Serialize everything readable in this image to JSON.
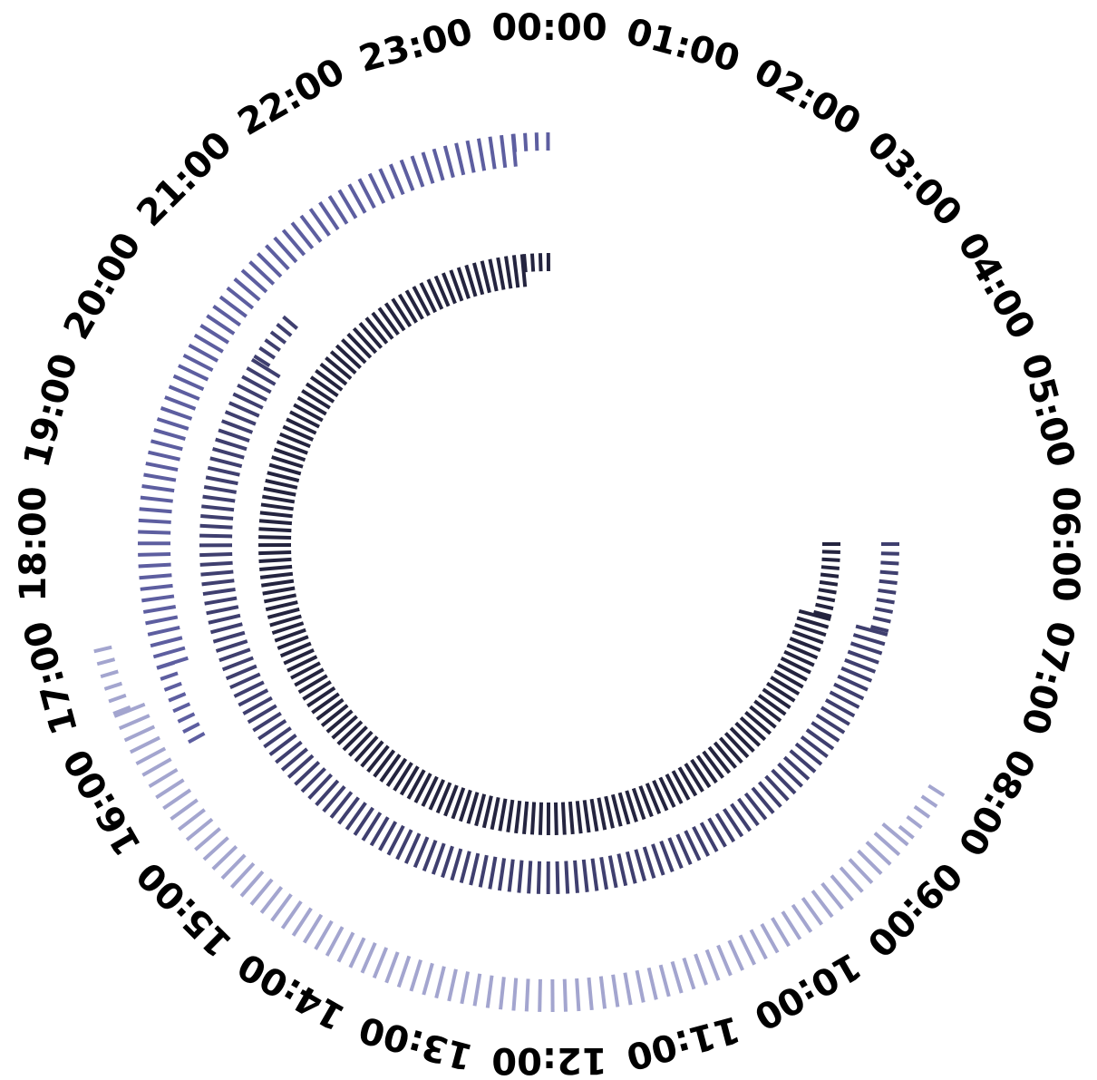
{
  "chart_data": {
    "type": "radial-bar",
    "hour_labels": [
      "00:00",
      "01:00",
      "02:00",
      "03:00",
      "04:00",
      "05:00",
      "06:00",
      "07:00",
      "08:00",
      "09:00",
      "10:00",
      "11:00",
      "12:00",
      "13:00",
      "14:00",
      "15:00",
      "16:00",
      "17:00",
      "18:00",
      "19:00",
      "20:00",
      "21:00",
      "22:00",
      "23:00"
    ],
    "grid": false,
    "series": [
      {
        "color": "#24243f",
        "spans": [
          {
            "start": "06:00",
            "end": "07:00",
            "tick_length": "short"
          },
          {
            "start": "07:00",
            "end": "23:40",
            "tick_length": "long"
          },
          {
            "start": "23:40",
            "end": "00:00",
            "tick_length": "short"
          }
        ]
      },
      {
        "color": "#3f3f6f",
        "spans": [
          {
            "start": "06:00",
            "end": "07:00",
            "tick_length": "short"
          },
          {
            "start": "07:00",
            "end": "20:10",
            "tick_length": "long"
          },
          {
            "start": "20:10",
            "end": "20:45",
            "tick_length": "short"
          }
        ]
      },
      {
        "color": "#5d5ea0",
        "spans": [
          {
            "start": "16:05",
            "end": "16:50",
            "tick_length": "short"
          },
          {
            "start": "16:50",
            "end": "23:40",
            "tick_length": "long"
          },
          {
            "start": "23:40",
            "end": "00:00",
            "tick_length": "short"
          }
        ]
      },
      {
        "color": "#a3a5cf",
        "spans": [
          {
            "start": "08:10",
            "end": "08:40",
            "tick_length": "short"
          },
          {
            "start": "08:40",
            "end": "16:35",
            "tick_length": "long"
          },
          {
            "start": "16:35",
            "end": "17:10",
            "tick_length": "short"
          }
        ]
      }
    ]
  }
}
